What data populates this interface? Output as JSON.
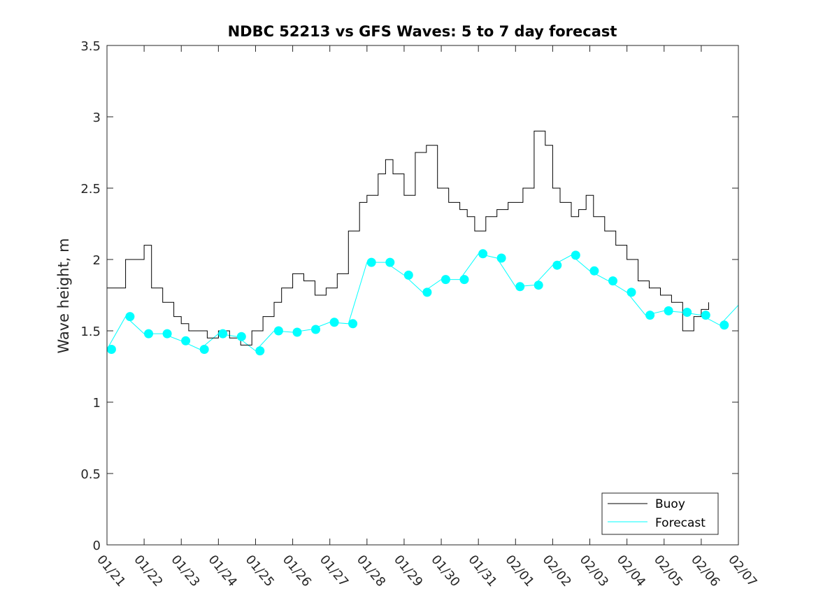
{
  "chart_data": {
    "type": "line",
    "title": "NDBC 52213 vs GFS Waves: 5 to 7 day forecast",
    "xlabel": "",
    "ylabel": "Wave height, m",
    "xlim": [
      0,
      17
    ],
    "ylim": [
      0,
      3.5
    ],
    "grid": false,
    "legend_position": "bottom-right",
    "x_tick_labels": [
      "01/21",
      "01/22",
      "01/23",
      "01/24",
      "01/25",
      "01/26",
      "01/27",
      "01/28",
      "01/29",
      "01/30",
      "01/31",
      "02/01",
      "02/02",
      "02/03",
      "02/04",
      "02/05",
      "02/06",
      "02/07"
    ],
    "y_tick_labels": [
      "0",
      "0.5",
      "1",
      "1.5",
      "2",
      "2.5",
      "3",
      "3.5"
    ],
    "y_tick_values": [
      0,
      0.5,
      1,
      1.5,
      2,
      2.5,
      3,
      3.5
    ],
    "colors": {
      "buoy": "#000000",
      "forecast": "#00ffff",
      "axes": "#262626"
    },
    "series": [
      {
        "name": "Buoy",
        "x": [
          0,
          0.5,
          0.7,
          1.0,
          1.2,
          1.5,
          1.8,
          2.0,
          2.2,
          2.5,
          2.7,
          3.0,
          3.3,
          3.6,
          3.9,
          4.2,
          4.5,
          4.7,
          5.0,
          5.3,
          5.6,
          5.9,
          6.2,
          6.5,
          6.8,
          7.0,
          7.3,
          7.5,
          7.7,
          8.0,
          8.3,
          8.6,
          8.9,
          9.2,
          9.5,
          9.7,
          9.9,
          10.2,
          10.5,
          10.8,
          11.0,
          11.2,
          11.5,
          11.8,
          12.0,
          12.2,
          12.5,
          12.7,
          12.9,
          13.1,
          13.4,
          13.7,
          14.0,
          14.3,
          14.6,
          14.9,
          15.2,
          15.5,
          15.8,
          16.0,
          16.2
        ],
        "values": [
          1.8,
          2.0,
          2.0,
          2.1,
          1.8,
          1.7,
          1.6,
          1.55,
          1.5,
          1.5,
          1.45,
          1.5,
          1.45,
          1.4,
          1.5,
          1.6,
          1.7,
          1.8,
          1.9,
          1.85,
          1.75,
          1.8,
          1.9,
          2.2,
          2.4,
          2.45,
          2.6,
          2.7,
          2.6,
          2.45,
          2.75,
          2.8,
          2.5,
          2.4,
          2.35,
          2.3,
          2.2,
          2.3,
          2.35,
          2.4,
          2.4,
          2.5,
          2.9,
          2.8,
          2.5,
          2.4,
          2.3,
          2.35,
          2.45,
          2.3,
          2.2,
          2.1,
          2.0,
          1.85,
          1.8,
          1.75,
          1.7,
          1.5,
          1.6,
          1.65,
          1.7
        ]
      },
      {
        "name": "Forecast",
        "x": [
          0,
          0.5,
          1.0,
          1.5,
          2.0,
          2.5,
          3.0,
          3.5,
          4.0,
          4.5,
          5.0,
          5.5,
          6.0,
          6.5,
          7.0,
          7.5,
          8.0,
          8.5,
          9.0,
          9.5,
          10.0,
          10.5,
          11.0,
          11.5,
          12.0,
          12.5,
          13.0,
          13.5,
          14.0,
          14.5,
          15.0,
          15.5,
          16.0,
          16.5,
          17.0
        ],
        "values": [
          1.37,
          1.6,
          1.48,
          1.48,
          1.43,
          1.37,
          1.48,
          1.46,
          1.36,
          1.5,
          1.49,
          1.51,
          1.56,
          1.55,
          1.98,
          1.98,
          1.89,
          1.77,
          1.86,
          1.86,
          2.04,
          2.01,
          1.81,
          1.82,
          1.96,
          2.03,
          1.92,
          1.85,
          1.77,
          1.61,
          1.64,
          1.63,
          1.61,
          1.54,
          1.68
        ]
      }
    ],
    "forecast_markers": {
      "x": [
        0.12,
        0.62,
        1.12,
        1.62,
        2.12,
        2.62,
        3.12,
        3.62,
        4.12,
        4.62,
        5.12,
        5.62,
        6.12,
        6.62,
        7.12,
        7.62,
        8.12,
        8.62,
        9.12,
        9.62,
        10.12,
        10.62,
        11.12,
        11.62,
        12.12,
        12.62,
        13.12,
        13.62,
        14.12,
        14.62,
        15.12,
        15.62,
        16.12,
        16.62
      ],
      "values": [
        1.37,
        1.6,
        1.48,
        1.48,
        1.43,
        1.37,
        1.48,
        1.46,
        1.36,
        1.5,
        1.49,
        1.51,
        1.56,
        1.55,
        1.98,
        1.98,
        1.89,
        1.77,
        1.86,
        1.86,
        2.04,
        2.01,
        1.81,
        1.82,
        1.96,
        2.03,
        1.92,
        1.85,
        1.77,
        1.61,
        1.64,
        1.63,
        1.61,
        1.54
      ]
    }
  }
}
